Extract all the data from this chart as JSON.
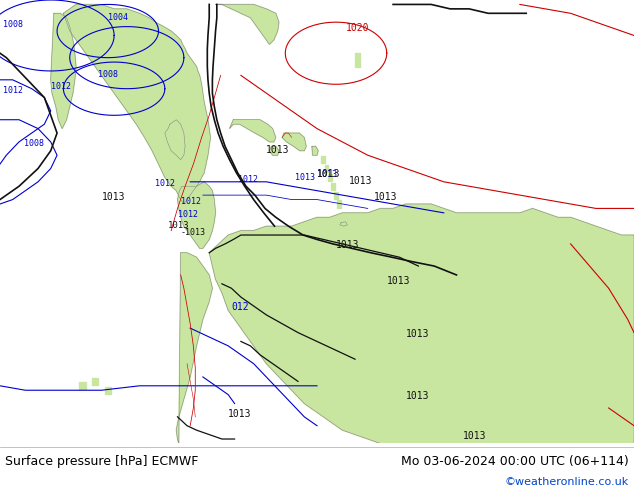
{
  "title_left": "Surface pressure [hPa] ECMWF",
  "title_right": "Mo 03-06-2024 00:00 UTC (06+114)",
  "credit": "©weatheronline.co.uk",
  "map_bg": "#c8c8cc",
  "land_color": "#c8e6a0",
  "land_border": "#888888",
  "footer_bg": "#ffffff",
  "blue": "#0000cc",
  "red": "#cc0000",
  "black": "#111111",
  "credit_color": "#0044cc",
  "label_fs": 6,
  "footer_fs": 9
}
